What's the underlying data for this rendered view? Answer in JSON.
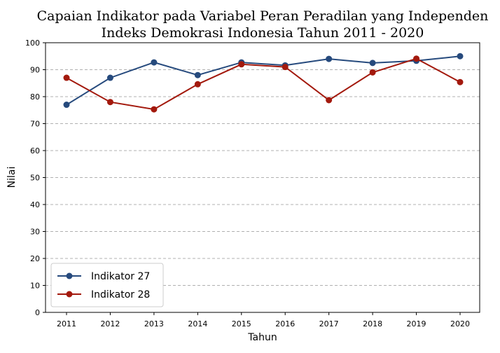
{
  "chart_data": {
    "type": "line",
    "title_line1": "Capaian Indikator pada Variabel Peran Peradilan yang Independen",
    "title_line2": "Indeks Demokrasi Indonesia Tahun 2011 - 2020",
    "xlabel": "Tahun",
    "ylabel": "Nilai",
    "categories": [
      "2011",
      "2012",
      "2013",
      "2014",
      "2015",
      "2016",
      "2017",
      "2018",
      "2019",
      "2020"
    ],
    "yticks": [
      "0",
      "10",
      "20",
      "30",
      "40",
      "50",
      "60",
      "70",
      "80",
      "90",
      "100"
    ],
    "ylim": [
      0,
      100
    ],
    "grid": "horizontal dashed",
    "legend_position": "bottom-left",
    "series": [
      {
        "name": "Indikator 27",
        "color": "#264a7d",
        "values": [
          77,
          87,
          92.7,
          88,
          92.7,
          91.6,
          94,
          92.5,
          93.3,
          95
        ]
      },
      {
        "name": "Indikator 28",
        "color": "#a3190d",
        "values": [
          87,
          78,
          75.3,
          84.6,
          92,
          91,
          78.7,
          89,
          94.1,
          85.4
        ]
      }
    ]
  }
}
